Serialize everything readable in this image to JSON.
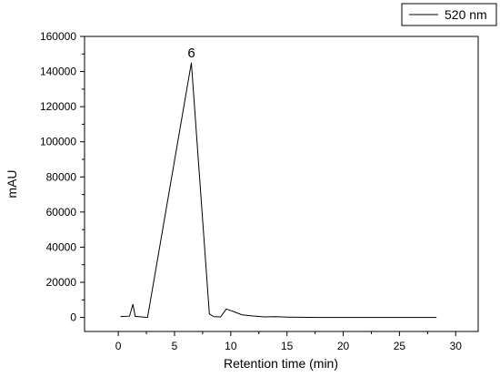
{
  "chart_data": {
    "type": "line",
    "xlabel": "Retention time (min)",
    "ylabel": "mAU",
    "xlim": [
      -3,
      32
    ],
    "ylim": [
      -8000,
      160000
    ],
    "x_ticks": [
      0,
      5,
      10,
      15,
      20,
      25,
      30
    ],
    "x_tick_labels": [
      "0",
      "5",
      "10",
      "15",
      "20",
      "25",
      "30"
    ],
    "y_ticks": [
      0,
      20000,
      40000,
      60000,
      80000,
      100000,
      120000,
      140000,
      160000
    ],
    "y_tick_labels": [
      "0",
      "20000",
      "40000",
      "60000",
      "80000",
      "100000",
      "120000",
      "140000",
      "160000"
    ],
    "grid": false,
    "legend": {
      "position": "top-right",
      "entries": [
        "520 nm"
      ]
    },
    "series": [
      {
        "name": "520 nm",
        "color": "#000000",
        "x": [
          0.2,
          1.0,
          1.3,
          1.5,
          2.6,
          6.5,
          8.1,
          8.5,
          9.1,
          9.6,
          10.3,
          11.0,
          12.0,
          13.0,
          14.0,
          15.0,
          16.0,
          18.0,
          20.0,
          22.0,
          25.0,
          28.3
        ],
        "y": [
          500,
          700,
          7500,
          600,
          0,
          145000,
          2000,
          400,
          300,
          4800,
          3200,
          1500,
          800,
          300,
          400,
          200,
          100,
          0,
          0,
          0,
          0,
          0
        ]
      }
    ],
    "annotations": [
      {
        "text": "6",
        "x": 6.5,
        "y": 145000
      }
    ]
  }
}
